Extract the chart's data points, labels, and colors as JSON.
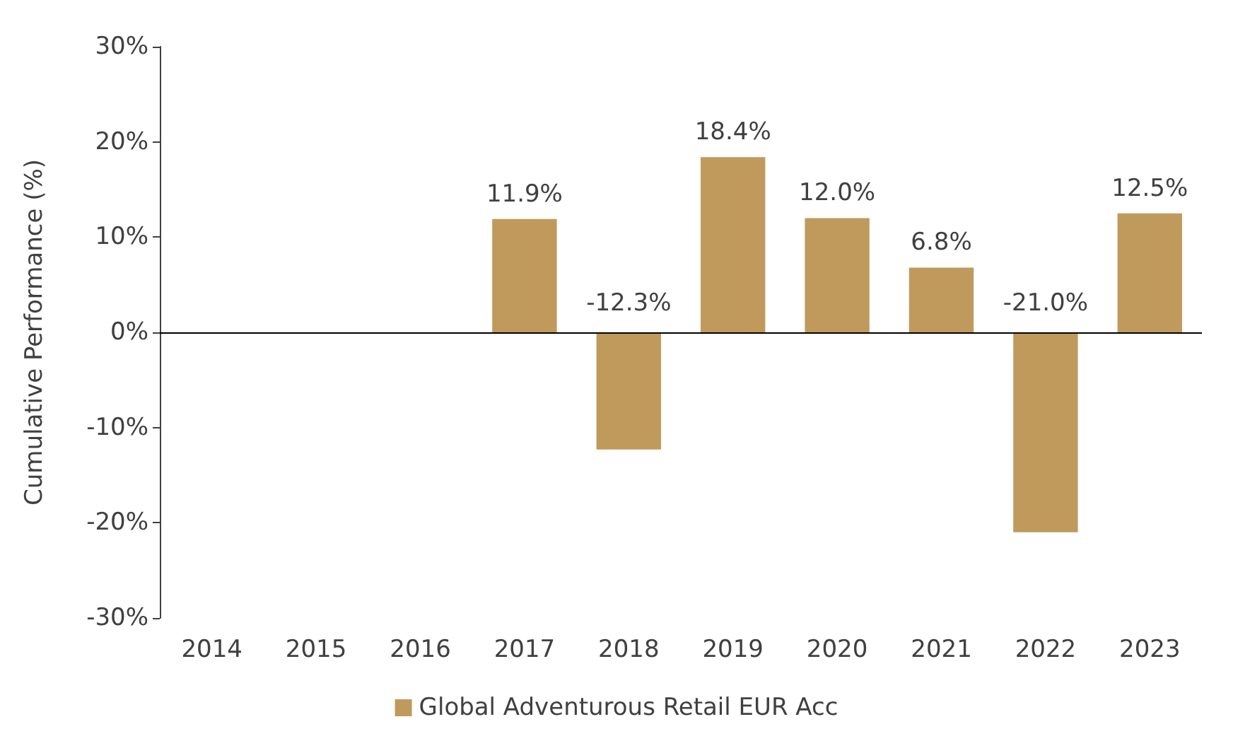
{
  "chart_data": {
    "type": "bar",
    "ylabel": "Cumulative Performance (%)",
    "categories": [
      "2014",
      "2015",
      "2016",
      "2017",
      "2018",
      "2019",
      "2020",
      "2021",
      "2022",
      "2023"
    ],
    "series": [
      {
        "name": "Global Adventurous Retail EUR Acc",
        "color": "#c09a5c",
        "values": [
          null,
          null,
          null,
          11.9,
          -12.3,
          18.4,
          12.0,
          6.8,
          -21.0,
          12.5
        ],
        "value_labels": [
          null,
          null,
          null,
          "11.9%",
          "-12.3%",
          "18.4%",
          "12.0%",
          "6.8%",
          "-21.0%",
          "12.5%"
        ]
      }
    ],
    "ylim": [
      -30,
      30
    ],
    "yticks": [
      {
        "value": -30,
        "label": "-30%"
      },
      {
        "value": -20,
        "label": "-20%"
      },
      {
        "value": -10,
        "label": "-10%"
      },
      {
        "value": 0,
        "label": "0%"
      },
      {
        "value": 10,
        "label": "10%"
      },
      {
        "value": 20,
        "label": "20%"
      },
      {
        "value": 30,
        "label": "30%"
      }
    ],
    "ref_lines": [
      {
        "axis": "y",
        "value": 0,
        "color": "#000000",
        "line_style": "solid"
      }
    ],
    "legend": "bottom"
  }
}
